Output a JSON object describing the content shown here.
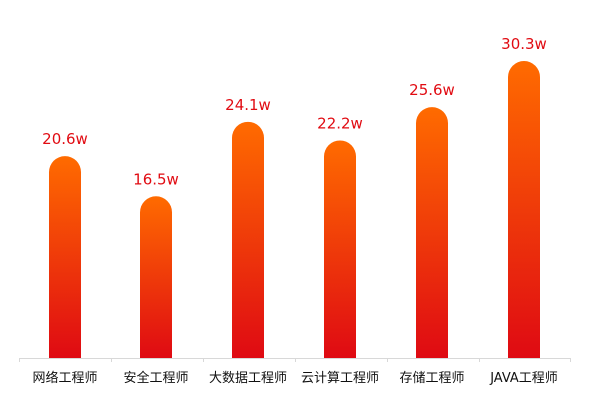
{
  "chart_data": {
    "type": "bar",
    "categories": [
      "网络工程师",
      "安全工程师",
      "大数据工程师",
      "云计算工程师",
      "存储工程师",
      "JAVA工程师"
    ],
    "values": [
      20.6,
      16.5,
      24.1,
      22.2,
      25.6,
      30.3
    ],
    "data_labels": [
      "20.6w",
      "16.5w",
      "24.1w",
      "22.2w",
      "25.6w",
      "30.3w"
    ],
    "title": "",
    "xlabel": "",
    "ylabel": "",
    "ylim": [
      0,
      32
    ],
    "grid": false,
    "legend": "none"
  },
  "colors": {
    "bar_top": "#ff6b00",
    "bar_bottom": "#df0a13",
    "label": "#e10b12",
    "axis": "#d8d8d8",
    "tick_text": "#111111"
  }
}
